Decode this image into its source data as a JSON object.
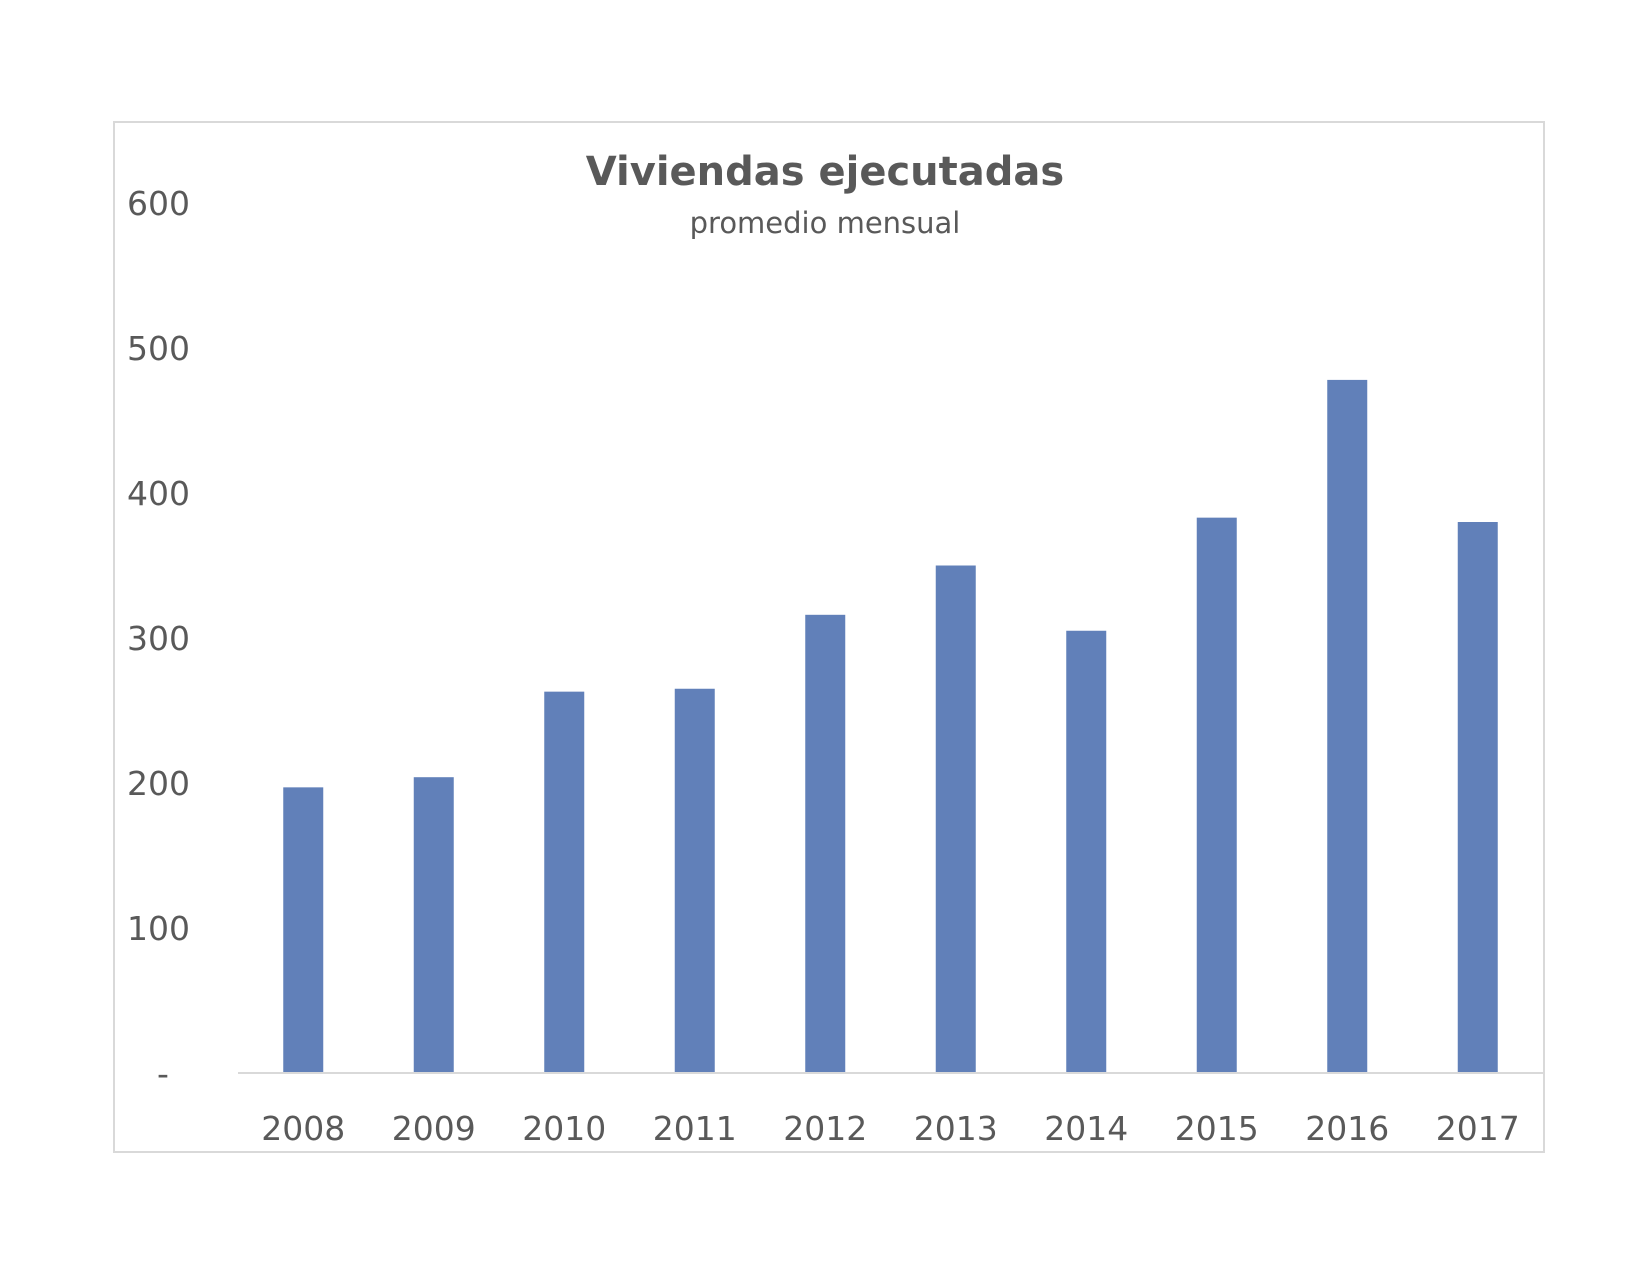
{
  "chart_data": {
    "type": "bar",
    "title": "Viviendas ejecutadas",
    "subtitle": "promedio mensual",
    "categories": [
      "2008",
      "2009",
      "2010",
      "2011",
      "2012",
      "2013",
      "2014",
      "2015",
      "2016",
      "2017"
    ],
    "values": [
      197,
      204,
      263,
      265,
      316,
      350,
      305,
      383,
      478,
      380
    ],
    "ylim": [
      0,
      600
    ],
    "yticks": [
      0,
      100,
      200,
      300,
      400,
      500,
      600
    ],
    "ytick_labels": [
      "-",
      "100",
      "200",
      "300",
      "400",
      "500",
      "600"
    ],
    "grid": false,
    "legend": "none",
    "bar_color": "#6180b9",
    "axis_color": "#d9d9d9",
    "text_color": "#595959"
  }
}
